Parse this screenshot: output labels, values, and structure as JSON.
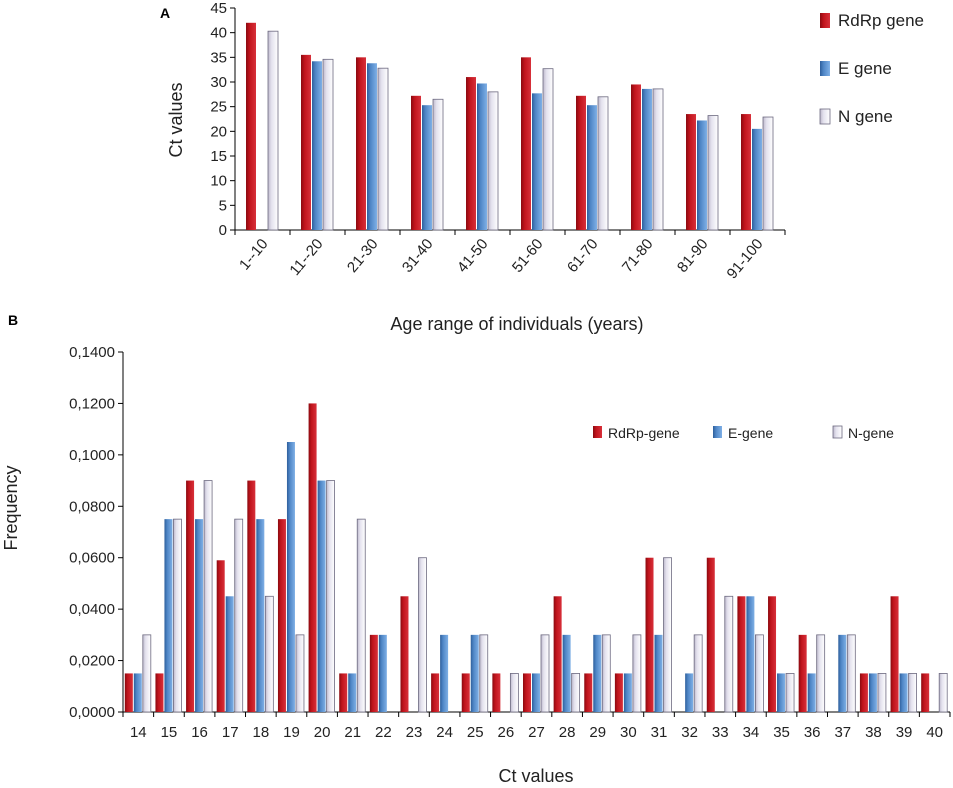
{
  "chart_data": [
    {
      "panel": "A",
      "type": "bar",
      "title": "",
      "xlabel": "Age range of individuals (years)",
      "ylabel": "Ct values",
      "ylim": [
        0,
        45
      ],
      "yticks": [
        "0",
        "5",
        "10",
        "15",
        "20",
        "25",
        "30",
        "35",
        "40",
        "45"
      ],
      "categories": [
        "1--10",
        "11--20",
        "21-30",
        "31-40",
        "41-50",
        "51-60",
        "61-70",
        "71-80",
        "81-90",
        "91-100"
      ],
      "series": [
        {
          "name": "RdRp gene",
          "color": "#c0141c",
          "values": [
            42,
            35.5,
            35,
            27.2,
            31,
            35,
            27.2,
            29.5,
            23.5,
            23.5
          ]
        },
        {
          "name": "E gene",
          "color": "#4f86c6",
          "values": [
            null,
            34.2,
            33.8,
            25.3,
            29.7,
            27.7,
            25.3,
            28.6,
            22.2,
            20.5
          ]
        },
        {
          "name": "N gene",
          "color": "#e4e2ee",
          "values": [
            40.3,
            34.6,
            32.8,
            26.5,
            28,
            32.7,
            27,
            28.6,
            23.2,
            22.9
          ]
        }
      ],
      "legend": "right"
    },
    {
      "panel": "B",
      "type": "bar",
      "title": "",
      "xlabel": "Ct values",
      "ylabel": "Frequency",
      "ylim": [
        0,
        0.14
      ],
      "yticks": [
        "0,0000",
        "0,0200",
        "0,0400",
        "0,0600",
        "0,0800",
        "0,1000",
        "0,1200",
        "0,1400"
      ],
      "categories": [
        "14",
        "15",
        "16",
        "17",
        "18",
        "19",
        "20",
        "21",
        "22",
        "23",
        "24",
        "25",
        "26",
        "27",
        "28",
        "29",
        "30",
        "31",
        "32",
        "33",
        "34",
        "35",
        "36",
        "37",
        "38",
        "39",
        "40"
      ],
      "series": [
        {
          "name": "RdRp-gene",
          "color": "#c0141c",
          "values": [
            0.015,
            0.015,
            0.09,
            0.059,
            0.09,
            0.075,
            0.12,
            0.015,
            0.03,
            0.045,
            0.015,
            0.015,
            0.015,
            0.015,
            0.045,
            0.015,
            0.015,
            0.06,
            null,
            0.06,
            0.045,
            0.045,
            0.03,
            null,
            0.015,
            0.045,
            0.015
          ]
        },
        {
          "name": "E-gene",
          "color": "#4f86c6",
          "values": [
            0.015,
            0.075,
            0.075,
            0.045,
            0.075,
            0.105,
            0.09,
            0.015,
            0.03,
            null,
            0.03,
            0.03,
            null,
            0.015,
            0.03,
            0.03,
            0.015,
            0.03,
            0.015,
            null,
            0.045,
            0.015,
            0.015,
            0.03,
            0.015,
            0.015,
            null
          ]
        },
        {
          "name": "N-gene",
          "color": "#e4e2ee",
          "values": [
            0.03,
            0.075,
            0.09,
            0.075,
            0.045,
            0.03,
            0.09,
            0.075,
            null,
            0.06,
            null,
            0.03,
            0.015,
            0.03,
            0.015,
            0.03,
            0.03,
            0.06,
            0.03,
            0.045,
            0.03,
            0.015,
            0.03,
            0.03,
            0.015,
            0.015,
            0.015
          ]
        }
      ],
      "legend": "top-right"
    }
  ]
}
